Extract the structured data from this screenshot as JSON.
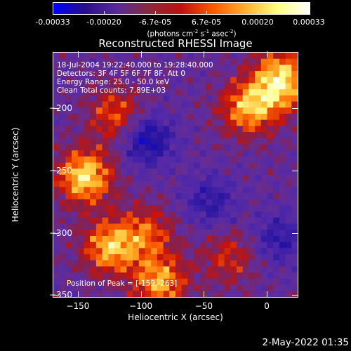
{
  "colorbar": {
    "ticks": [
      "-0.00033",
      "-0.00020",
      "-6.7e-05",
      "6.7e-05",
      "0.00020",
      "0.00033"
    ],
    "unit_prefix": "(photons cm",
    "unit_exp1": "-2",
    "unit_mid": " s",
    "unit_exp2": "-1",
    "unit_mid2": " asec",
    "unit_exp3": "-2",
    "unit_suffix": ")",
    "colors": [
      "#0000ff",
      "#2a0f8a",
      "#5a2a9a",
      "#8a2a3a",
      "#c01010",
      "#ff5a00",
      "#ffb030",
      "#ffff80",
      "#ffffff"
    ]
  },
  "chart_data": {
    "type": "heatmap",
    "title": "Reconstructed RHESSI Image",
    "xlabel": "Heliocentric X (arcsec)",
    "ylabel": "Heliocentric Y (arcsec)",
    "xlim": [
      -170,
      25
    ],
    "ylim": [
      -352,
      -155
    ],
    "xticks": [
      -150,
      -100,
      -50,
      0
    ],
    "yticks": [
      -350,
      -300,
      -250,
      -200
    ],
    "xtick_labels": [
      "−150",
      "−100",
      "−50",
      "0"
    ],
    "ytick_labels": [
      "−350",
      "−300",
      "−250",
      "−200"
    ],
    "grid": false,
    "info_lines": [
      "18-Jul-2004 19:22:40.000 to 19:28:40.000",
      "Detectors: 3F 4F 5F 6F 7F 8F, Att 0",
      "Energy Range: 25.0 - 50.0 keV",
      "Clean     Total counts: 7.89E+03"
    ],
    "peak_label": "Position of Peak = [-159,-263]",
    "hot_regions": [
      {
        "x": -145,
        "y": -255,
        "value": 1.0
      },
      {
        "x": -125,
        "y": -312,
        "value": 0.85
      },
      {
        "x": -85,
        "y": -340,
        "value": 0.8
      },
      {
        "x": -120,
        "y": -205,
        "value": 0.6
      },
      {
        "x": -15,
        "y": -200,
        "value": 0.8
      },
      {
        "x": 10,
        "y": -185,
        "value": 0.6
      },
      {
        "x": 12,
        "y": -170,
        "value": 0.55
      },
      {
        "x": -95,
        "y": -300,
        "value": 0.55
      },
      {
        "x": -30,
        "y": -320,
        "value": 0.45
      }
    ],
    "cold_regions": [
      {
        "x": -95,
        "y": -225,
        "value": 0.9
      },
      {
        "x": -45,
        "y": -275,
        "value": 0.6
      },
      {
        "x": 10,
        "y": -305,
        "value": 0.6
      }
    ]
  },
  "footer": {
    "date": "2-May-2022 01:35"
  }
}
